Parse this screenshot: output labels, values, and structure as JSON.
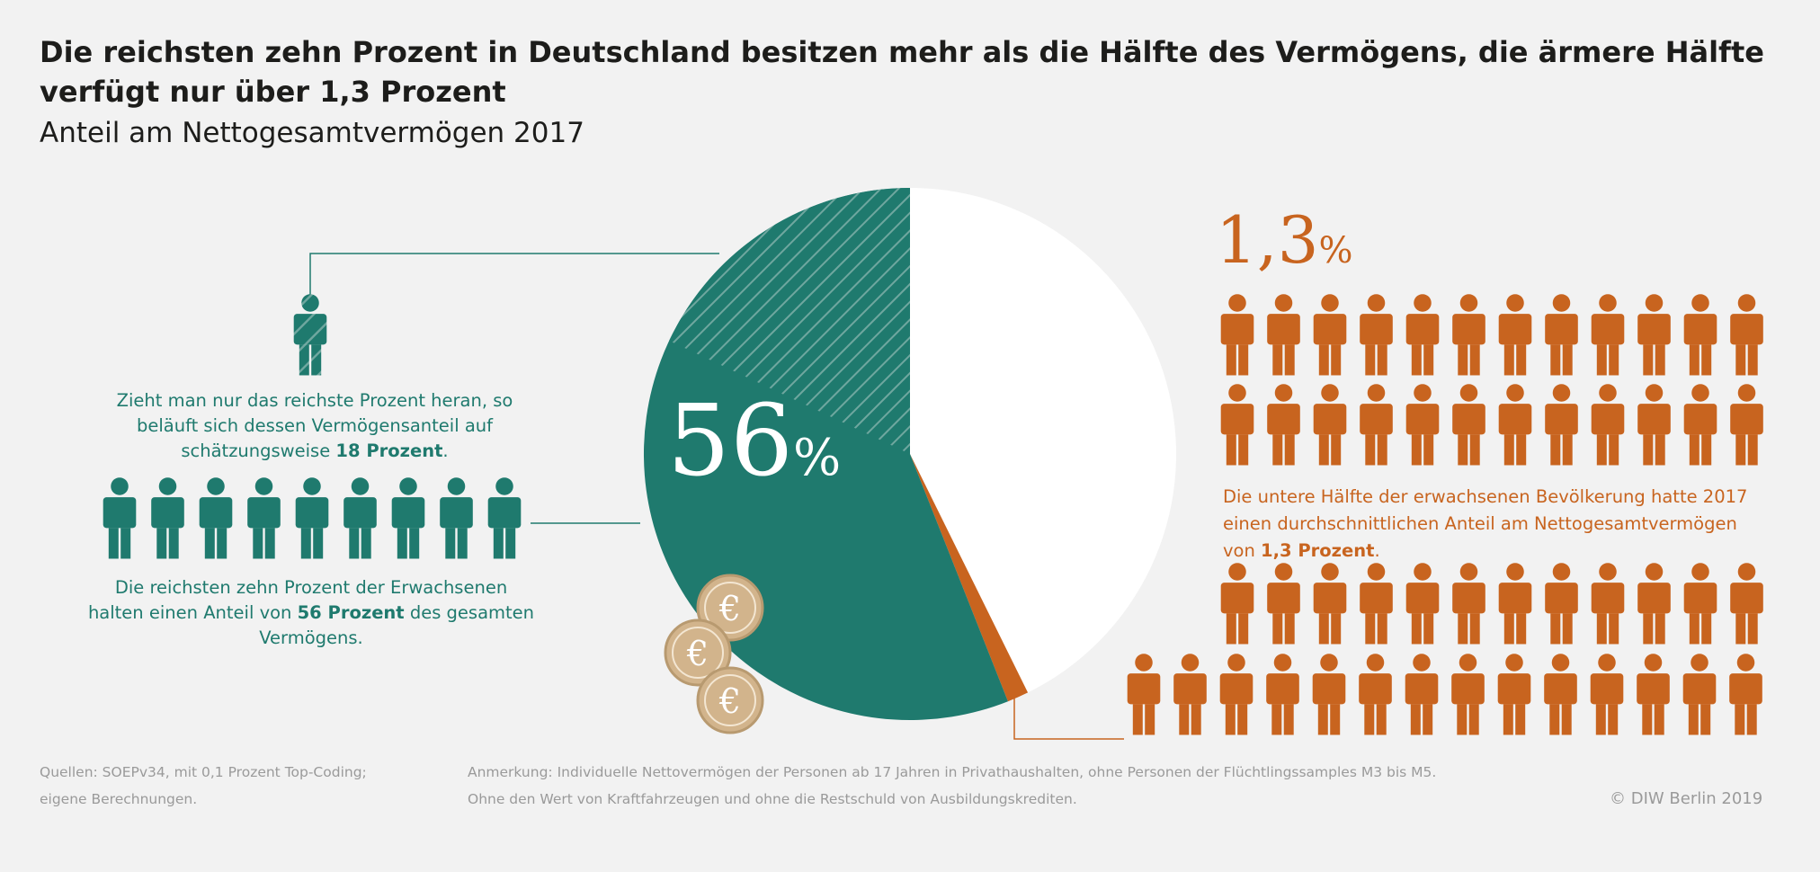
{
  "title": "Die reichsten zehn Prozent in Deutschland besitzen mehr als die Hälfte des Vermögens, die ärmere Hälfte verfügt nur über 1,3 Prozent",
  "subtitle": "Anteil am Nettogesamtvermögen 2017",
  "chart_data": {
    "type": "pie",
    "title": "Die reichsten zehn Prozent in Deutschland besitzen mehr als die Hälfte des Vermögens, die ärmere Hälfte verfügt nur über 1,3 Prozent",
    "subtitle": "Anteil am Nettogesamtvermögen 2017",
    "slices": [
      {
        "label": "56%",
        "value": 56,
        "color": "#1f7a6e"
      },
      {
        "label": "1,3%",
        "value": 1.3,
        "color": "#c8641f"
      },
      {
        "label": "",
        "value": 42.7,
        "color": "#ffffff"
      }
    ],
    "highlight": {
      "value": 18,
      "color": "#1f7a6e",
      "pattern": "hatched"
    }
  },
  "labels": {
    "big_teal": "56",
    "big_teal_pct": "%",
    "big_orange": "1,3",
    "big_orange_pct": "%"
  },
  "left_notes": {
    "top_pre": "Zieht man nur das reichste Prozent heran, so beläuft sich dessen Vermögensanteil auf schätzungsweise ",
    "top_bold": "18 Prozent",
    "top_post": ".",
    "bottom_pre": "Die reichsten zehn Prozent der Erwachsenen halten einen Anteil von ",
    "bottom_bold": "56 Prozent",
    "bottom_post": " des gesamten Vermögens."
  },
  "right_note": {
    "pre": "Die untere Hälfte der erwachsenen Bevölkerung hatte 2017 einen durchschnittlichen Anteil am Nettogesamtvermögen von ",
    "bold": "1,3 Prozent",
    "post": "."
  },
  "footer": {
    "sources_line1": "Quellen: SOEPv34, mit 0,1 Prozent Top-Coding;",
    "sources_line2": "eigene Berechnungen.",
    "note_line1": "Anmerkung: Individuelle Nettovermögen der Personen ab 17 Jahren in Privathaushalten, ohne Personen der Flüchtlingssamples M3 bis M5.",
    "note_line2": "Ohne den Wert von Kraftfahrzeugen und ohne die Restschuld von Ausbildungskrediten.",
    "copyright": "© DIW Berlin 2019"
  },
  "coin_symbol": "€",
  "colors": {
    "teal": "#1f7a6e",
    "orange": "#c8641f",
    "coin": "#d2b48c",
    "background": "#f2f2f2"
  },
  "icons": {
    "person": "person-icon",
    "coin": "euro-coin-icon"
  }
}
